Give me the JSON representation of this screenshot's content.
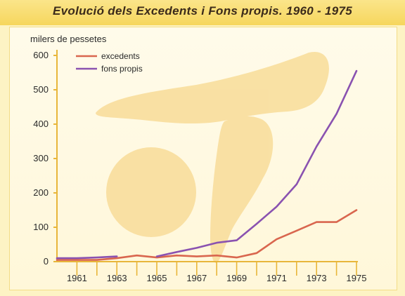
{
  "chart_data": {
    "type": "line",
    "title": "Evolució dels Excedents i Fons propis. 1960 - 1975",
    "ylabel": "milers de pessetes",
    "xlabel": "",
    "xlim": [
      1960,
      1975
    ],
    "ylim": [
      0,
      600
    ],
    "yticks": [
      0,
      100,
      200,
      300,
      400,
      500,
      600
    ],
    "xticks": [
      1961,
      1963,
      1965,
      1967,
      1969,
      1971,
      1973,
      1975
    ],
    "legend_position": "top-left",
    "grid": false,
    "series": [
      {
        "name": "excedents",
        "color": "#d9664e",
        "segments": [
          [
            [
              1960,
              5
            ],
            [
              1961,
              5
            ],
            [
              1962,
              5
            ],
            [
              1963,
              10
            ],
            [
              1964,
              18
            ],
            [
              1965,
              12
            ],
            [
              1966,
              18
            ],
            [
              1967,
              15
            ],
            [
              1968,
              18
            ],
            [
              1969,
              12
            ],
            [
              1970,
              25
            ],
            [
              1971,
              65
            ],
            [
              1972,
              90
            ],
            [
              1973,
              115
            ],
            [
              1974,
              115
            ],
            [
              1975,
              150
            ]
          ]
        ]
      },
      {
        "name": "fons propis",
        "color": "#8a52b0",
        "segments": [
          [
            [
              1960,
              10
            ],
            [
              1961,
              10
            ],
            [
              1962,
              12
            ],
            [
              1963,
              15
            ]
          ],
          [
            [
              1965,
              15
            ],
            [
              1966,
              28
            ],
            [
              1967,
              40
            ],
            [
              1968,
              55
            ],
            [
              1969,
              62
            ],
            [
              1970,
              110
            ],
            [
              1971,
              160
            ],
            [
              1972,
              225
            ],
            [
              1973,
              335
            ],
            [
              1974,
              430
            ],
            [
              1975,
              555
            ]
          ]
        ]
      }
    ]
  }
}
